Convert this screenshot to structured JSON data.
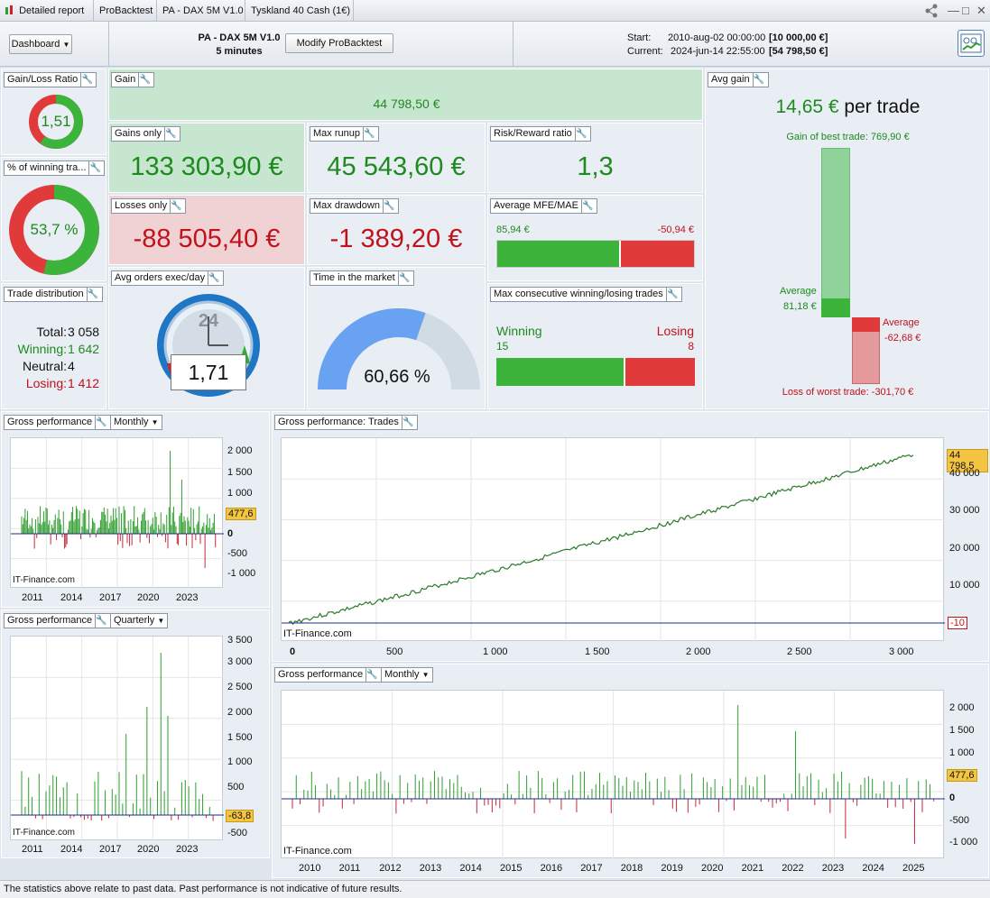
{
  "tabs": [
    {
      "label": "Detailed report",
      "x": 0
    },
    {
      "label": "ProBacktest"
    },
    {
      "label": "PA - DAX 5M V1.0"
    },
    {
      "label": "Tyskland 40 Cash (1€)"
    }
  ],
  "header": {
    "dashboard_label": "Dashboard",
    "title": "PA - DAX 5M V1.0",
    "subtitle": "5 minutes",
    "modify_label": "Modify ProBacktest",
    "start_label": "Start:",
    "start_value": "2010-aug-02 00:00:00",
    "start_capital": "[10 000,00 €]",
    "current_label": "Current:",
    "current_value": "2024-jun-14 22:55:00",
    "current_capital": "[54 798,50 €]"
  },
  "panels": {
    "gain_loss_ratio": {
      "label": "Gain/Loss Ratio",
      "value": "1,51",
      "fraction": 0.6
    },
    "pct_winning": {
      "label": "% of winning tra...",
      "value": "53,7 %",
      "fraction": 0.537
    },
    "trade_distribution": {
      "label": "Trade distribution",
      "total_label": "Total:",
      "total": "3 058",
      "winning_label": "Winning:",
      "winning": "1 642",
      "neutral_label": "Neutral:",
      "neutral": "4",
      "losing_label": "Losing:",
      "losing": "1 412"
    },
    "gain": {
      "label": "Gain",
      "value": "44 798,50 €"
    },
    "gains_only": {
      "label": "Gains only",
      "value": "133 303,90 €"
    },
    "losses_only": {
      "label": "Losses only",
      "value": "-88 505,40 €"
    },
    "max_runup": {
      "label": "Max runup",
      "value": "45 543,60 €"
    },
    "max_drawdown": {
      "label": "Max drawdown",
      "value": "-1 389,20 €"
    },
    "risk_reward": {
      "label": "Risk/Reward ratio",
      "value": "1,3"
    },
    "avg_mfe_mae": {
      "label": "Average MFE/MAE",
      "mfe": "85,94 €",
      "mae": "-50,94 €",
      "mfe_fraction": 0.63
    },
    "avg_orders": {
      "label": "Avg orders exec/day",
      "value": "1,71",
      "clock": "24"
    },
    "time_in_market": {
      "label": "Time in the market",
      "value": "60,66 %",
      "fraction": 0.6066
    },
    "max_consec": {
      "label": "Max consecutive winning/losing trades",
      "winning_label": "Winning",
      "losing_label": "Losing",
      "winning": "15",
      "losing": "8",
      "win_fraction": 0.65
    },
    "avg_gain": {
      "label": "Avg gain",
      "value": "14,65 €",
      "per_trade": "per trade",
      "best_label": "Gain of best trade: 769,90 €",
      "avg_label": "Average",
      "avg_value": "81,18 €",
      "loss_avg_label": "Average",
      "loss_avg_value": "-62,68 €",
      "worst_label": "Loss of worst trade: -301,70 €"
    }
  },
  "charts": {
    "monthly_small": {
      "label": "Gross performance",
      "period": "Monthly",
      "tag": "477,6",
      "source": "IT-Finance.com",
      "yticks": [
        "2 000",
        "1 500",
        "1 000",
        "0",
        "-500",
        "-1 000"
      ],
      "xticks": [
        "2011",
        "2014",
        "2017",
        "2020",
        "2023"
      ]
    },
    "quarterly": {
      "label": "Gross performance",
      "period": "Quarterly",
      "tag": "-63,8",
      "source": "IT-Finance.com",
      "yticks": [
        "3 500",
        "3 000",
        "2 500",
        "2 000",
        "1 500",
        "1 000",
        "500",
        "-500"
      ],
      "xticks": [
        "2011",
        "2014",
        "2017",
        "2020",
        "2023"
      ]
    },
    "trades": {
      "label": "Gross performance: Trades",
      "tag": "44 798,5",
      "tag_low": "-10",
      "source": "IT-Finance.com",
      "yticks": [
        "40 000",
        "30 000",
        "20 000",
        "10 000"
      ],
      "xticks": [
        "0",
        "500",
        "1 000",
        "1 500",
        "2 000",
        "2 500",
        "3 000"
      ]
    },
    "monthly_large": {
      "label": "Gross performance",
      "period": "Monthly",
      "tag": "477,6",
      "source": "IT-Finance.com",
      "yticks": [
        "2 000",
        "1 500",
        "1 000",
        "0",
        "-500",
        "-1 000"
      ],
      "xticks": [
        "2010",
        "2011",
        "2012",
        "2013",
        "2014",
        "2015",
        "2016",
        "2017",
        "2018",
        "2019",
        "2020",
        "2021",
        "2022",
        "2023",
        "2024",
        "2025"
      ]
    }
  },
  "footer": "The statistics above relate to past data. Past performance is not indicative of future results.",
  "colors": {
    "green": "#3cb43c",
    "red": "#e03a3a",
    "gain_bg": "#c6e6d0",
    "loss_bg": "#f0d2d4",
    "blue": "#6aa2f2"
  }
}
